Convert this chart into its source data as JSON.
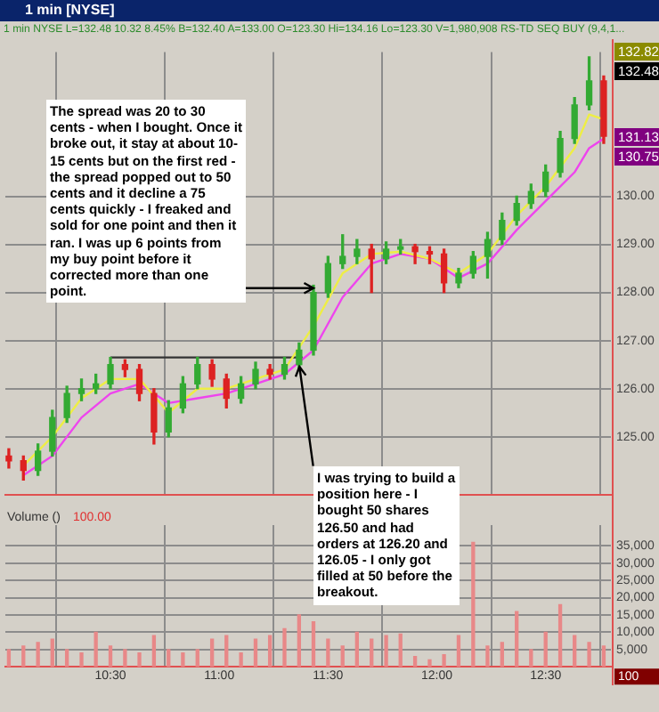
{
  "chart_data": [
    {
      "type": "candlestick",
      "title": "1 min [NYSE]",
      "subtitle": "1 min NYSE L=132.48 10.32 8.45% B=132.40 A=133.00 O=123.30 Hi=134.16 Lo=123.30 V=1,980,908 RS-TD SEQ BUY (9,4,1...",
      "x": [
        10.033,
        10.1,
        10.167,
        10.233,
        10.3,
        10.367,
        10.433,
        10.5,
        10.567,
        10.633,
        10.7,
        10.767,
        10.833,
        10.9,
        10.967,
        11.033,
        11.1,
        11.167,
        11.233,
        11.3,
        11.367,
        11.433,
        11.5,
        11.567,
        11.633,
        11.7,
        11.767,
        11.833,
        11.9,
        11.967,
        12.033,
        12.1,
        12.167,
        12.233,
        12.3,
        12.367,
        12.433,
        12.5,
        12.567,
        12.633,
        12.7,
        12.767
      ],
      "ohlc": [
        [
          124.6,
          124.75,
          124.35,
          124.5
        ],
        [
          124.5,
          124.6,
          124.1,
          124.3
        ],
        [
          124.3,
          124.85,
          124.2,
          124.7
        ],
        [
          124.7,
          125.55,
          124.6,
          125.4
        ],
        [
          125.4,
          126.05,
          125.3,
          125.9
        ],
        [
          125.9,
          126.2,
          125.75,
          126.0
        ],
        [
          126.0,
          126.3,
          125.9,
          126.1
        ],
        [
          126.1,
          126.65,
          126.0,
          126.5
        ],
        [
          126.5,
          126.6,
          126.25,
          126.4
        ],
        [
          126.4,
          126.5,
          125.75,
          125.9
        ],
        [
          125.9,
          126.0,
          124.85,
          125.1
        ],
        [
          125.1,
          125.75,
          125.0,
          125.6
        ],
        [
          125.6,
          126.25,
          125.5,
          126.1
        ],
        [
          126.1,
          126.65,
          126.0,
          126.5
        ],
        [
          126.5,
          126.6,
          126.05,
          126.2
        ],
        [
          126.2,
          126.3,
          125.6,
          125.8
        ],
        [
          125.8,
          126.25,
          125.7,
          126.1
        ],
        [
          126.1,
          126.55,
          126.0,
          126.4
        ],
        [
          126.4,
          126.5,
          126.2,
          126.3
        ],
        [
          126.3,
          126.65,
          126.2,
          126.5
        ],
        [
          126.5,
          126.95,
          126.4,
          126.8
        ],
        [
          126.8,
          128.15,
          126.7,
          128.0
        ],
        [
          128.0,
          128.75,
          127.9,
          128.6
        ],
        [
          128.6,
          129.2,
          128.5,
          128.75
        ],
        [
          128.75,
          129.1,
          128.6,
          128.9
        ],
        [
          128.9,
          129.0,
          128.0,
          128.7
        ],
        [
          128.7,
          129.05,
          128.6,
          128.9
        ],
        [
          128.9,
          129.1,
          128.8,
          128.95
        ],
        [
          128.95,
          129.0,
          128.6,
          128.85
        ],
        [
          128.85,
          128.95,
          128.6,
          128.8
        ],
        [
          128.8,
          128.9,
          128.0,
          128.2
        ],
        [
          128.2,
          128.5,
          128.1,
          128.4
        ],
        [
          128.4,
          128.85,
          128.3,
          128.75
        ],
        [
          128.75,
          129.25,
          128.3,
          129.1
        ],
        [
          129.1,
          129.65,
          129.0,
          129.5
        ],
        [
          129.5,
          130.0,
          129.4,
          129.85
        ],
        [
          129.85,
          130.25,
          129.75,
          130.1
        ],
        [
          130.1,
          130.65,
          130.0,
          130.5
        ],
        [
          130.5,
          131.35,
          130.4,
          131.2
        ],
        [
          131.2,
          132.05,
          131.1,
          131.9
        ],
        [
          131.9,
          132.9,
          131.8,
          132.4
        ],
        [
          132.4,
          132.5,
          131.1,
          131.25
        ]
      ],
      "colors": [
        "#dd2222",
        "#dd2222",
        "#33aa33",
        "#33aa33",
        "#33aa33",
        "#33aa33",
        "#33aa33",
        "#33aa33",
        "#dd2222",
        "#dd2222",
        "#dd2222",
        "#33aa33",
        "#33aa33",
        "#33aa33",
        "#dd2222",
        "#dd2222",
        "#33aa33",
        "#33aa33",
        "#dd2222",
        "#33aa33",
        "#33aa33",
        "#33aa33",
        "#33aa33",
        "#33aa33",
        "#33aa33",
        "#dd2222",
        "#33aa33",
        "#33aa33",
        "#dd2222",
        "#dd2222",
        "#dd2222",
        "#33aa33",
        "#33aa33",
        "#33aa33",
        "#33aa33",
        "#33aa33",
        "#33aa33",
        "#33aa33",
        "#33aa33",
        "#33aa33",
        "#33aa33",
        "#dd2222"
      ],
      "series": [
        {
          "type": "line",
          "color": "#eeee44",
          "x": [
            10.1,
            10.233,
            10.367,
            10.5,
            10.633,
            10.767,
            10.9,
            11.033,
            11.167,
            11.3,
            11.433,
            11.567,
            11.7,
            11.833,
            11.967,
            12.1,
            12.233,
            12.367,
            12.5,
            12.633,
            12.7,
            12.767
          ],
          "values": [
            124.4,
            125.0,
            125.8,
            126.2,
            126.2,
            125.5,
            126.0,
            126.0,
            126.2,
            126.4,
            127.3,
            128.4,
            128.8,
            128.85,
            128.7,
            128.4,
            128.8,
            129.6,
            130.2,
            131.0,
            131.7,
            131.6
          ]
        },
        {
          "type": "line",
          "color": "#ee44ee",
          "x": [
            10.1,
            10.233,
            10.367,
            10.5,
            10.633,
            10.767,
            10.9,
            11.033,
            11.167,
            11.3,
            11.433,
            11.567,
            11.7,
            11.833,
            11.967,
            12.1,
            12.233,
            12.367,
            12.5,
            12.633,
            12.7,
            12.767
          ],
          "values": [
            124.2,
            124.6,
            125.4,
            125.9,
            126.1,
            125.7,
            125.8,
            125.9,
            126.1,
            126.3,
            126.8,
            127.9,
            128.6,
            128.8,
            128.7,
            128.3,
            128.6,
            129.3,
            129.9,
            130.5,
            131.0,
            131.2
          ]
        },
        {
          "type": "line",
          "color": "#333333",
          "x": [
            10.5,
            11.383
          ],
          "values": [
            126.65,
            126.65
          ]
        }
      ],
      "xlim": [
        10.017,
        12.8
      ],
      "xticks": [
        {
          "value": 10.5,
          "label": null
        },
        {
          "value": 11,
          "label": null
        },
        {
          "value": 11.5,
          "label": null
        },
        {
          "value": 12,
          "label": null
        },
        {
          "value": 12.5,
          "label": null
        }
      ],
      "ylim": [
        123.8,
        133
      ],
      "yticks": [
        {
          "value": 125,
          "label": "125.00"
        },
        {
          "value": 126,
          "label": "126.00"
        },
        {
          "value": 127,
          "label": "127.00"
        },
        {
          "value": 128,
          "label": "128.00"
        },
        {
          "value": 129,
          "label": "129.00"
        },
        {
          "value": 130,
          "label": "130.00"
        }
      ],
      "grid": true,
      "tick_labels": "y",
      "legend": false,
      "annotations": [
        "The spread was 20 to 30 cents - when I bought. Once it broke out, it stay at about 10-15 cents but on the first red - the spread popped out to 50 cents and it decline a 75 cents quickly - I freaked and sold for one point and then it ran. I was up 6 points from my buy point before it corrected more than one point.",
        {
          "text": "I was trying to build a position here - I bought 50 shares 126.50 and had orders at 126.20 and 126.05 - I only got filled at 50 before the breakout.",
          "x": 11.37,
          "y": 126.45
        },
        "132.82",
        "132.48",
        "131.13",
        "130.75"
      ]
    },
    {
      "type": "bar",
      "title": "Volume ()",
      "x": [
        10.033,
        10.1,
        10.167,
        10.233,
        10.3,
        10.367,
        10.433,
        10.5,
        10.567,
        10.633,
        10.7,
        10.767,
        10.833,
        10.9,
        10.967,
        11.033,
        11.1,
        11.167,
        11.233,
        11.3,
        11.367,
        11.433,
        11.5,
        11.567,
        11.633,
        11.7,
        11.767,
        11.833,
        11.9,
        11.967,
        12.033,
        12.1,
        12.167,
        12.233,
        12.3,
        12.367,
        12.433,
        12.5,
        12.567,
        12.633,
        12.7,
        12.767
      ],
      "values": [
        5000,
        6000,
        7000,
        8000,
        5000,
        4000,
        10000,
        6000,
        5000,
        4000,
        9000,
        5000,
        4000,
        5000,
        8000,
        9000,
        4000,
        8000,
        9000,
        11000,
        15000,
        13000,
        8000,
        6000,
        10000,
        8000,
        9000,
        9500,
        3000,
        2000,
        3500,
        9000,
        36000,
        6000,
        7000,
        16000,
        5000,
        10000,
        18000,
        9000,
        7000,
        6000
      ],
      "color": "#e88888",
      "xlim": [
        10.017,
        12.8
      ],
      "xticks": [
        {
          "value": 10.5,
          "label": "10:30"
        },
        {
          "value": 11,
          "label": "11:00"
        },
        {
          "value": 11.5,
          "label": "11:30"
        },
        {
          "value": 12,
          "label": "12:00"
        },
        {
          "value": 12.5,
          "label": "12:30"
        }
      ],
      "ylim": [
        0,
        41000
      ],
      "yticks": [
        {
          "value": 5000,
          "label": "5,000"
        },
        {
          "value": 10000,
          "label": "10,000"
        },
        {
          "value": 15000,
          "label": "15,000"
        },
        {
          "value": 20000,
          "label": "20,000"
        },
        {
          "value": 25000,
          "label": "25,000"
        },
        {
          "value": 30000,
          "label": "30,000"
        },
        {
          "value": 35000,
          "label": "35,000"
        }
      ],
      "grid": true,
      "legend": false,
      "annotations": [
        "100.00",
        "100"
      ]
    }
  ]
}
